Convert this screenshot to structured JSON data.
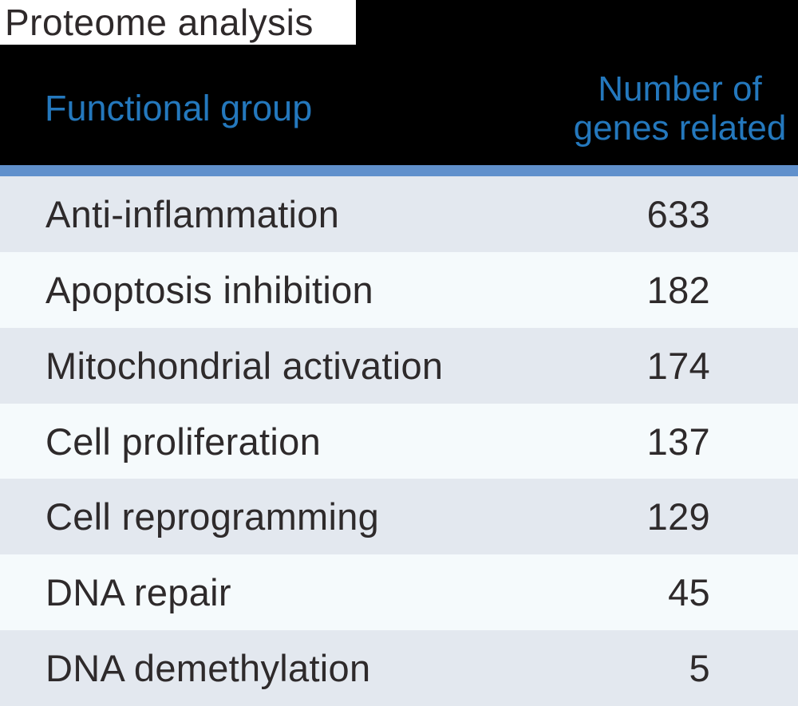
{
  "title": "Proteome analysis",
  "table": {
    "header": {
      "functional_group_label": "Functional group",
      "genes_related_line1": "Number of",
      "genes_related_line2": "genes related"
    },
    "rows": [
      {
        "label": "Anti-inflammation",
        "value": "633"
      },
      {
        "label": "Apoptosis inhibition",
        "value": "182"
      },
      {
        "label": "Mitochondrial activation",
        "value": "174"
      },
      {
        "label": "Cell proliferation",
        "value": "137"
      },
      {
        "label": "Cell reprogramming",
        "value": "129"
      },
      {
        "label": "DNA repair",
        "value": "45"
      },
      {
        "label": "DNA demethylation",
        "value": "5"
      }
    ]
  },
  "colors": {
    "header_background": "#000000",
    "header_text_blue": "#2478bd",
    "accent_bar_blue": "#6090cc",
    "row_gray": "#e3e8ef",
    "row_light": "#f5fafc",
    "body_text": "#2e2a2b",
    "title_text": "#2e292a"
  },
  "chart_data": {
    "type": "table",
    "title": "Proteome analysis",
    "columns": [
      "Functional group",
      "Number of genes related"
    ],
    "rows": [
      [
        "Anti-inflammation",
        633
      ],
      [
        "Apoptosis inhibition",
        182
      ],
      [
        "Mitochondrial activation",
        174
      ],
      [
        "Cell proliferation",
        137
      ],
      [
        "Cell reprogramming",
        129
      ],
      [
        "DNA repair",
        45
      ],
      [
        "DNA demethylation",
        5
      ]
    ],
    "layout_hints": {
      "header_style": "black band with blue text",
      "value_alignment": "right",
      "row_striping": "alternating gray / near-white"
    }
  }
}
